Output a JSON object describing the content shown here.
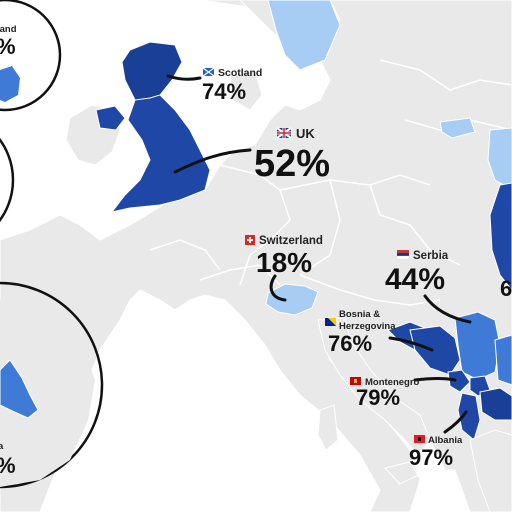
{
  "colors": {
    "sea": "#ffffff",
    "land": "#e9e9ea",
    "border": "#ffffff",
    "dark_blue": "#1f47a6",
    "mid_blue": "#3f7bd6",
    "light_blue": "#a8cdf5",
    "leader": "#111111"
  },
  "labels": {
    "scotland": {
      "name": "Scotland",
      "value": "74%"
    },
    "uk": {
      "name": "UK",
      "value": "52%"
    },
    "switzerland": {
      "name": "Switzerland",
      "value": "18%"
    },
    "serbia": {
      "name": "Serbia",
      "value": "44%"
    },
    "bosnia": {
      "name_line1": "Bosnia &",
      "name_line2": "Herzegovina",
      "value": "76%"
    },
    "montenegro": {
      "name": "Montenegro",
      "value": "79%"
    },
    "albania": {
      "name": "Albania",
      "value": "97%"
    },
    "cut_top_left": {
      "name": "land",
      "value": "%"
    },
    "cut_bottom_left": {
      "name": "a",
      "value": "%"
    },
    "cut_right": {
      "value": "6"
    }
  },
  "icons": [
    "scotland-flag-icon",
    "uk-flag-icon",
    "switzerland-flag-icon",
    "serbia-flag-icon",
    "bosnia-flag-icon",
    "montenegro-flag-icon",
    "albania-flag-icon"
  ]
}
